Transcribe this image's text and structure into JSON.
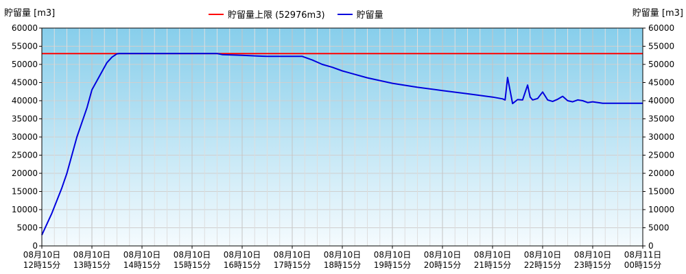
{
  "chart_data": {
    "type": "line",
    "ylabel_left": "貯留量 [m3]",
    "ylabel_right": "貯留量 [m3]",
    "ylim": [
      0,
      60000
    ],
    "yticks": [
      0,
      5000,
      10000,
      15000,
      20000,
      25000,
      30000,
      35000,
      40000,
      45000,
      50000,
      55000,
      60000
    ],
    "xticks": [
      [
        "08月10日",
        "12時15分"
      ],
      [
        "08月10日",
        "13時15分"
      ],
      [
        "08月10日",
        "14時15分"
      ],
      [
        "08月10日",
        "15時15分"
      ],
      [
        "08月10日",
        "16時15分"
      ],
      [
        "08月10日",
        "17時15分"
      ],
      [
        "08月10日",
        "18時15分"
      ],
      [
        "08月10日",
        "19時15分"
      ],
      [
        "08月10日",
        "20時15分"
      ],
      [
        "08月10日",
        "21時15分"
      ],
      [
        "08月10日",
        "22時15分"
      ],
      [
        "08月10日",
        "23時15分"
      ],
      [
        "08月11日",
        "00時15分"
      ]
    ],
    "grid": true,
    "legend_position": "top-center",
    "series": [
      {
        "name": "貯留量上限 (52976m3)",
        "color": "#ff0000",
        "x": [
          0,
          12
        ],
        "y": [
          52976,
          52976
        ]
      },
      {
        "name": "貯留量",
        "color": "#0000dd",
        "x": [
          0,
          0.1,
          0.2,
          0.3,
          0.4,
          0.5,
          0.6,
          0.7,
          0.8,
          0.9,
          1.0,
          1.1,
          1.2,
          1.3,
          1.4,
          1.5,
          1.55,
          1.6,
          1.7,
          1.8,
          1.85,
          1.9,
          1.95,
          2.0,
          2.1,
          3.0,
          3.5,
          3.6,
          4.0,
          4.3,
          4.5,
          5.0,
          5.2,
          5.4,
          5.6,
          5.8,
          6.0,
          6.5,
          7.0,
          7.5,
          8.0,
          8.5,
          9.0,
          9.2,
          9.25,
          9.3,
          9.4,
          9.5,
          9.6,
          9.7,
          9.75,
          9.8,
          9.9,
          10.0,
          10.1,
          10.2,
          10.3,
          10.4,
          10.5,
          10.6,
          10.7,
          10.8,
          10.9,
          11.0,
          11.2,
          11.5,
          12.0
        ],
        "y": [
          3000,
          6000,
          9000,
          12500,
          16000,
          20000,
          25000,
          30000,
          34000,
          38000,
          43000,
          45500,
          48000,
          50500,
          52000,
          52900,
          53000,
          53000,
          53000,
          53000,
          53000,
          53000,
          53000,
          53000,
          53000,
          53000,
          53000,
          52700,
          52500,
          52300,
          52200,
          52200,
          52200,
          51200,
          50000,
          49200,
          48200,
          46300,
          44800,
          43700,
          42800,
          41900,
          41000,
          40500,
          40200,
          46400,
          39200,
          40300,
          40200,
          44300,
          41000,
          40200,
          40600,
          42400,
          40200,
          39800,
          40400,
          41200,
          40000,
          39700,
          40200,
          40000,
          39500,
          39700,
          39300,
          39300,
          39300
        ]
      }
    ]
  }
}
